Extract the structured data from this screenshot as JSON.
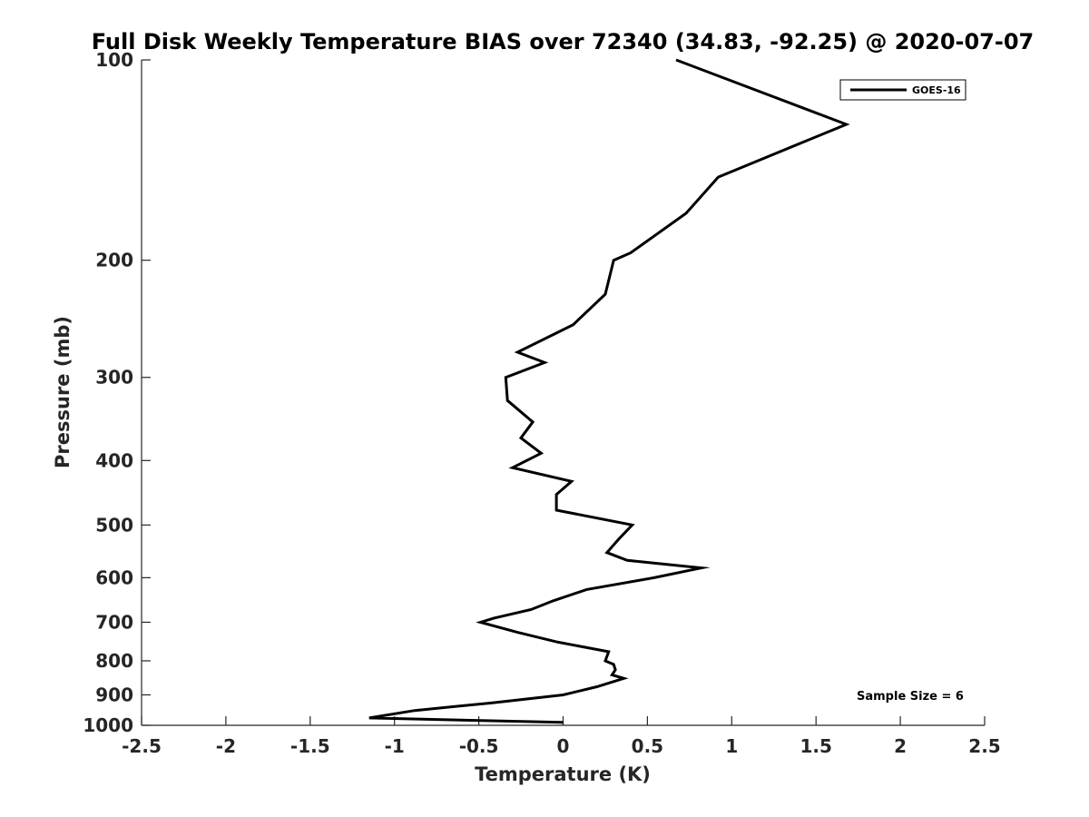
{
  "chart_data": {
    "type": "line",
    "title": "Full Disk Weekly Temperature BIAS over 72340 (34.83, -92.25) @ 2020-07-07",
    "xlabel": "Temperature (K)",
    "ylabel": "Pressure (mb)",
    "xlim": [
      -2.5,
      2.5
    ],
    "ylim": [
      100,
      1000
    ],
    "y_scale": "log",
    "y_reversed": true,
    "grid": false,
    "legend_position": "top-right",
    "x_ticks": [
      -2.5,
      -2,
      -1.5,
      -1,
      -0.5,
      0,
      0.5,
      1,
      1.5,
      2,
      2.5
    ],
    "x_tick_labels": [
      "-2.5",
      "-2",
      "-1.5",
      "-1",
      "-0.5",
      "0",
      "0.5",
      "1",
      "1.5",
      "2",
      "2.5"
    ],
    "y_ticks": [
      100,
      200,
      300,
      400,
      500,
      600,
      700,
      800,
      900,
      1000
    ],
    "y_tick_labels": [
      "100",
      "200",
      "300",
      "400",
      "500",
      "600",
      "700",
      "800",
      "900",
      "1000"
    ],
    "series": [
      {
        "name": "GOES-16",
        "color": "#000000",
        "points": [
          [
            0.67,
            100
          ],
          [
            1.68,
            125
          ],
          [
            0.92,
            150
          ],
          [
            0.73,
            170
          ],
          [
            0.4,
            195
          ],
          [
            0.3,
            200
          ],
          [
            0.25,
            225
          ],
          [
            0.06,
            250
          ],
          [
            -0.27,
            275
          ],
          [
            -0.11,
            285
          ],
          [
            -0.34,
            300
          ],
          [
            -0.33,
            325
          ],
          [
            -0.18,
            350
          ],
          [
            -0.25,
            370
          ],
          [
            -0.13,
            390
          ],
          [
            -0.3,
            410
          ],
          [
            0.05,
            430
          ],
          [
            -0.04,
            450
          ],
          [
            -0.04,
            475
          ],
          [
            0.41,
            500
          ],
          [
            0.33,
            525
          ],
          [
            0.26,
            550
          ],
          [
            0.38,
            565
          ],
          [
            0.82,
            580
          ],
          [
            0.54,
            600
          ],
          [
            0.14,
            625
          ],
          [
            -0.06,
            650
          ],
          [
            -0.19,
            670
          ],
          [
            -0.41,
            690
          ],
          [
            -0.49,
            700
          ],
          [
            -0.27,
            725
          ],
          [
            -0.03,
            750
          ],
          [
            0.27,
            775
          ],
          [
            0.25,
            800
          ],
          [
            0.3,
            810
          ],
          [
            0.31,
            825
          ],
          [
            0.29,
            840
          ],
          [
            0.36,
            850
          ],
          [
            0.2,
            875
          ],
          [
            0.0,
            900
          ],
          [
            -0.42,
            925
          ],
          [
            -0.88,
            950
          ],
          [
            -1.15,
            975
          ],
          [
            0.0,
            990
          ]
        ]
      }
    ],
    "annotation": "Sample Size = 6"
  }
}
